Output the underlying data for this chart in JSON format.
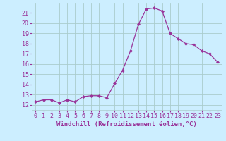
{
  "x": [
    0,
    1,
    2,
    3,
    4,
    5,
    6,
    7,
    8,
    9,
    10,
    11,
    12,
    13,
    14,
    15,
    16,
    17,
    18,
    19,
    20,
    21,
    22,
    23
  ],
  "y": [
    12.3,
    12.5,
    12.5,
    12.2,
    12.5,
    12.3,
    12.8,
    12.9,
    12.9,
    12.7,
    14.1,
    15.4,
    17.3,
    19.9,
    21.4,
    21.5,
    21.2,
    19.0,
    18.5,
    18.0,
    17.9,
    17.3,
    17.0,
    16.2
  ],
  "line_color": "#993399",
  "marker": "D",
  "marker_size": 2.0,
  "bg_color": "#cceeff",
  "grid_color": "#aacccc",
  "xlabel": "Windchill (Refroidissement éolien,°C)",
  "xlabel_fontsize": 6.5,
  "tick_color": "#993399",
  "tick_labelsize": 6.0,
  "xlim": [
    -0.5,
    23.5
  ],
  "ylim": [
    11.5,
    22.0
  ],
  "yticks": [
    12,
    13,
    14,
    15,
    16,
    17,
    18,
    19,
    20,
    21
  ],
  "xticks": [
    0,
    1,
    2,
    3,
    4,
    5,
    6,
    7,
    8,
    9,
    10,
    11,
    12,
    13,
    14,
    15,
    16,
    17,
    18,
    19,
    20,
    21,
    22,
    23
  ]
}
